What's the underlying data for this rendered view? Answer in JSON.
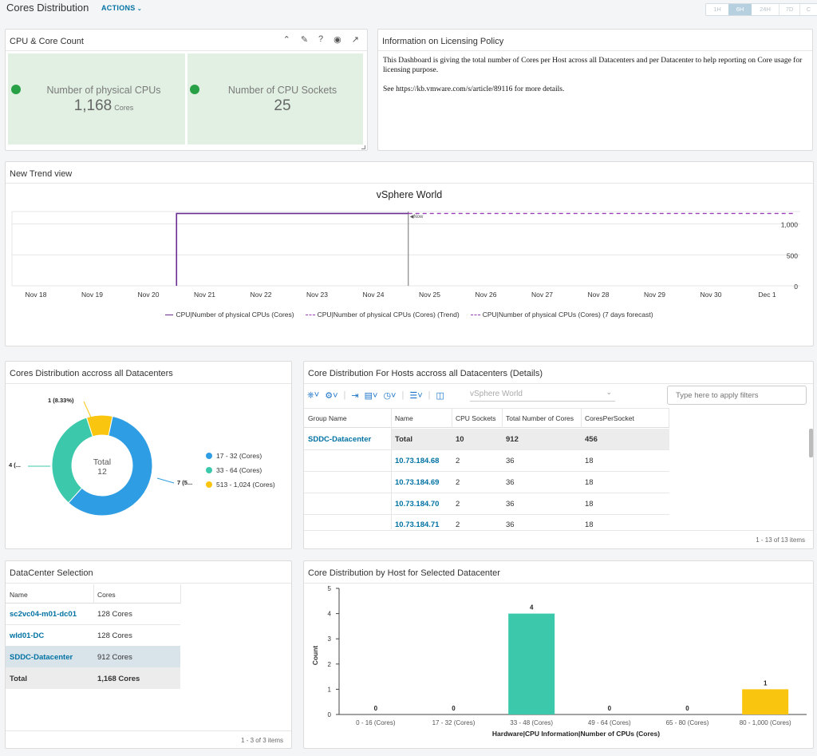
{
  "header": {
    "title": "Cores Distribution",
    "actions": "ACTIONS",
    "time_ranges": [
      "1H",
      "6H",
      "24H",
      "7D",
      "C"
    ],
    "active_range": "6H"
  },
  "cpu_panel": {
    "title": "CPU & Core Count",
    "cards": [
      {
        "label": "Number of physical CPUs",
        "value": "1,168",
        "unit": "Cores"
      },
      {
        "label": "Number of CPU Sockets",
        "value": "25",
        "unit": ""
      }
    ],
    "status_color": "#27a046",
    "card_bg": "#e1f0e2"
  },
  "info_panel": {
    "title": "Information on Licensing Policy",
    "para1": "This Dashboard is giving the total number of Cores per Host across all Datacenters and per Datacenter to help reporting on Core usage for licensing purpose.",
    "para2": "See https://kb.vmware.com/s/article/89116 for more details."
  },
  "trend_panel": {
    "title": "New Trend view",
    "chart_title": "vSphere World",
    "now_label": "Now",
    "x_labels": [
      "Nov 18",
      "Nov 19",
      "Nov 20",
      "Nov 21",
      "Nov 22",
      "Nov 23",
      "Nov 24",
      "Nov 25",
      "Nov 26",
      "Nov 27",
      "Nov 28",
      "Nov 29",
      "Nov 30",
      "Dec 1"
    ],
    "y_labels": [
      "1,000",
      "500",
      "0"
    ],
    "legend": [
      "CPU|Number of physical CPUs (Cores)",
      "CPU|Number of physical CPUs (Cores) (Trend)",
      "CPU|Number of physical CPUs (Cores) (7 days forecast)"
    ],
    "line_color": "#6a2c91",
    "trend_color": "#9b3fb8"
  },
  "donut_panel": {
    "title": "Cores Distribution accross all Datacenters",
    "center_label": "Total",
    "center_value": "12",
    "callouts": [
      "1 (8.33%)",
      "4 (...",
      "7 (5..."
    ],
    "legend": [
      "17 - 32 (Cores)",
      "33 - 64 (Cores)",
      "513 - 1,024 (Cores)"
    ],
    "colors": [
      "#2f9de4",
      "#3cc9ab",
      "#f9c50f"
    ]
  },
  "hosts_panel": {
    "title": "Core Distribution For Hosts accross all Datacenters (Details)",
    "scope": "vSphere World",
    "filter_placeholder": "Type here to apply filters",
    "columns": [
      "Group Name",
      "Name",
      "CPU Sockets",
      "Total Number of Cores",
      "CoresPerSocket"
    ],
    "group": "SDDC-Datacenter",
    "total_row": {
      "name": "Total",
      "sockets": "10",
      "cores": "912",
      "cps": "456"
    },
    "rows": [
      {
        "name": "10.73.184.68",
        "sockets": "2",
        "cores": "36",
        "cps": "18"
      },
      {
        "name": "10.73.184.69",
        "sockets": "2",
        "cores": "36",
        "cps": "18"
      },
      {
        "name": "10.73.184.70",
        "sockets": "2",
        "cores": "36",
        "cps": "18"
      },
      {
        "name": "10.73.184.71",
        "sockets": "2",
        "cores": "36",
        "cps": "18"
      }
    ],
    "footer": "1 - 13 of 13 items"
  },
  "dc_panel": {
    "title": "DataCenter Selection",
    "columns": [
      "Name",
      "Cores"
    ],
    "rows": [
      {
        "name": "sc2vc04-m01-dc01",
        "cores": "128 Cores"
      },
      {
        "name": "wld01-DC",
        "cores": "128 Cores"
      },
      {
        "name": "SDDC-Datacenter",
        "cores": "912 Cores"
      }
    ],
    "total": {
      "name": "Total",
      "cores": "1,168 Cores"
    },
    "footer": "1 - 3 of 3 items"
  },
  "bar_panel": {
    "title": "Core Distribution by Host for Selected Datacenter",
    "ylabel": "Count",
    "xlabel": "Hardware|CPU Information|Number of CPUs (Cores)",
    "y_ticks": [
      "5",
      "4",
      "3",
      "2",
      "1",
      "0"
    ]
  },
  "chart_data": [
    {
      "type": "line",
      "title": "vSphere World",
      "x": [
        "Nov 18",
        "Nov 19",
        "Nov 20",
        "Nov 21",
        "Nov 22",
        "Nov 23",
        "Nov 24",
        "Nov 25",
        "Nov 26",
        "Nov 27",
        "Nov 28",
        "Nov 29",
        "Nov 30",
        "Dec 1"
      ],
      "ylim": [
        0,
        1200
      ],
      "series": [
        {
          "name": "CPU|Number of physical CPUs (Cores)",
          "values": [
            null,
            null,
            1168,
            1168,
            1168,
            1168,
            1168,
            null,
            null,
            null,
            null,
            null,
            null,
            null
          ]
        },
        {
          "name": "CPU|Number of physical CPUs (Cores) (7 days forecast)",
          "values": [
            null,
            null,
            null,
            null,
            null,
            null,
            1168,
            1168,
            1168,
            1168,
            1168,
            1168,
            1168,
            1168
          ]
        }
      ]
    },
    {
      "type": "pie",
      "categories": [
        "17 - 32 (Cores)",
        "33 - 64 (Cores)",
        "513 - 1,024 (Cores)"
      ],
      "values": [
        7,
        4,
        1
      ],
      "total": 12
    },
    {
      "type": "bar",
      "categories": [
        "0 - 16 (Cores)",
        "17 - 32 (Cores)",
        "33 - 48 (Cores)",
        "49 - 64 (Cores)",
        "65 - 80 (Cores)",
        "80 - 1,000 (Cores)"
      ],
      "values": [
        0,
        0,
        4,
        0,
        0,
        1
      ],
      "colors": [
        "#3cc9ab",
        "#3cc9ab",
        "#3cc9ab",
        "#3cc9ab",
        "#3cc9ab",
        "#f9c50f"
      ],
      "xlabel": "Hardware|CPU Information|Number of CPUs (Cores)",
      "ylabel": "Count",
      "ylim": [
        0,
        5
      ]
    }
  ]
}
